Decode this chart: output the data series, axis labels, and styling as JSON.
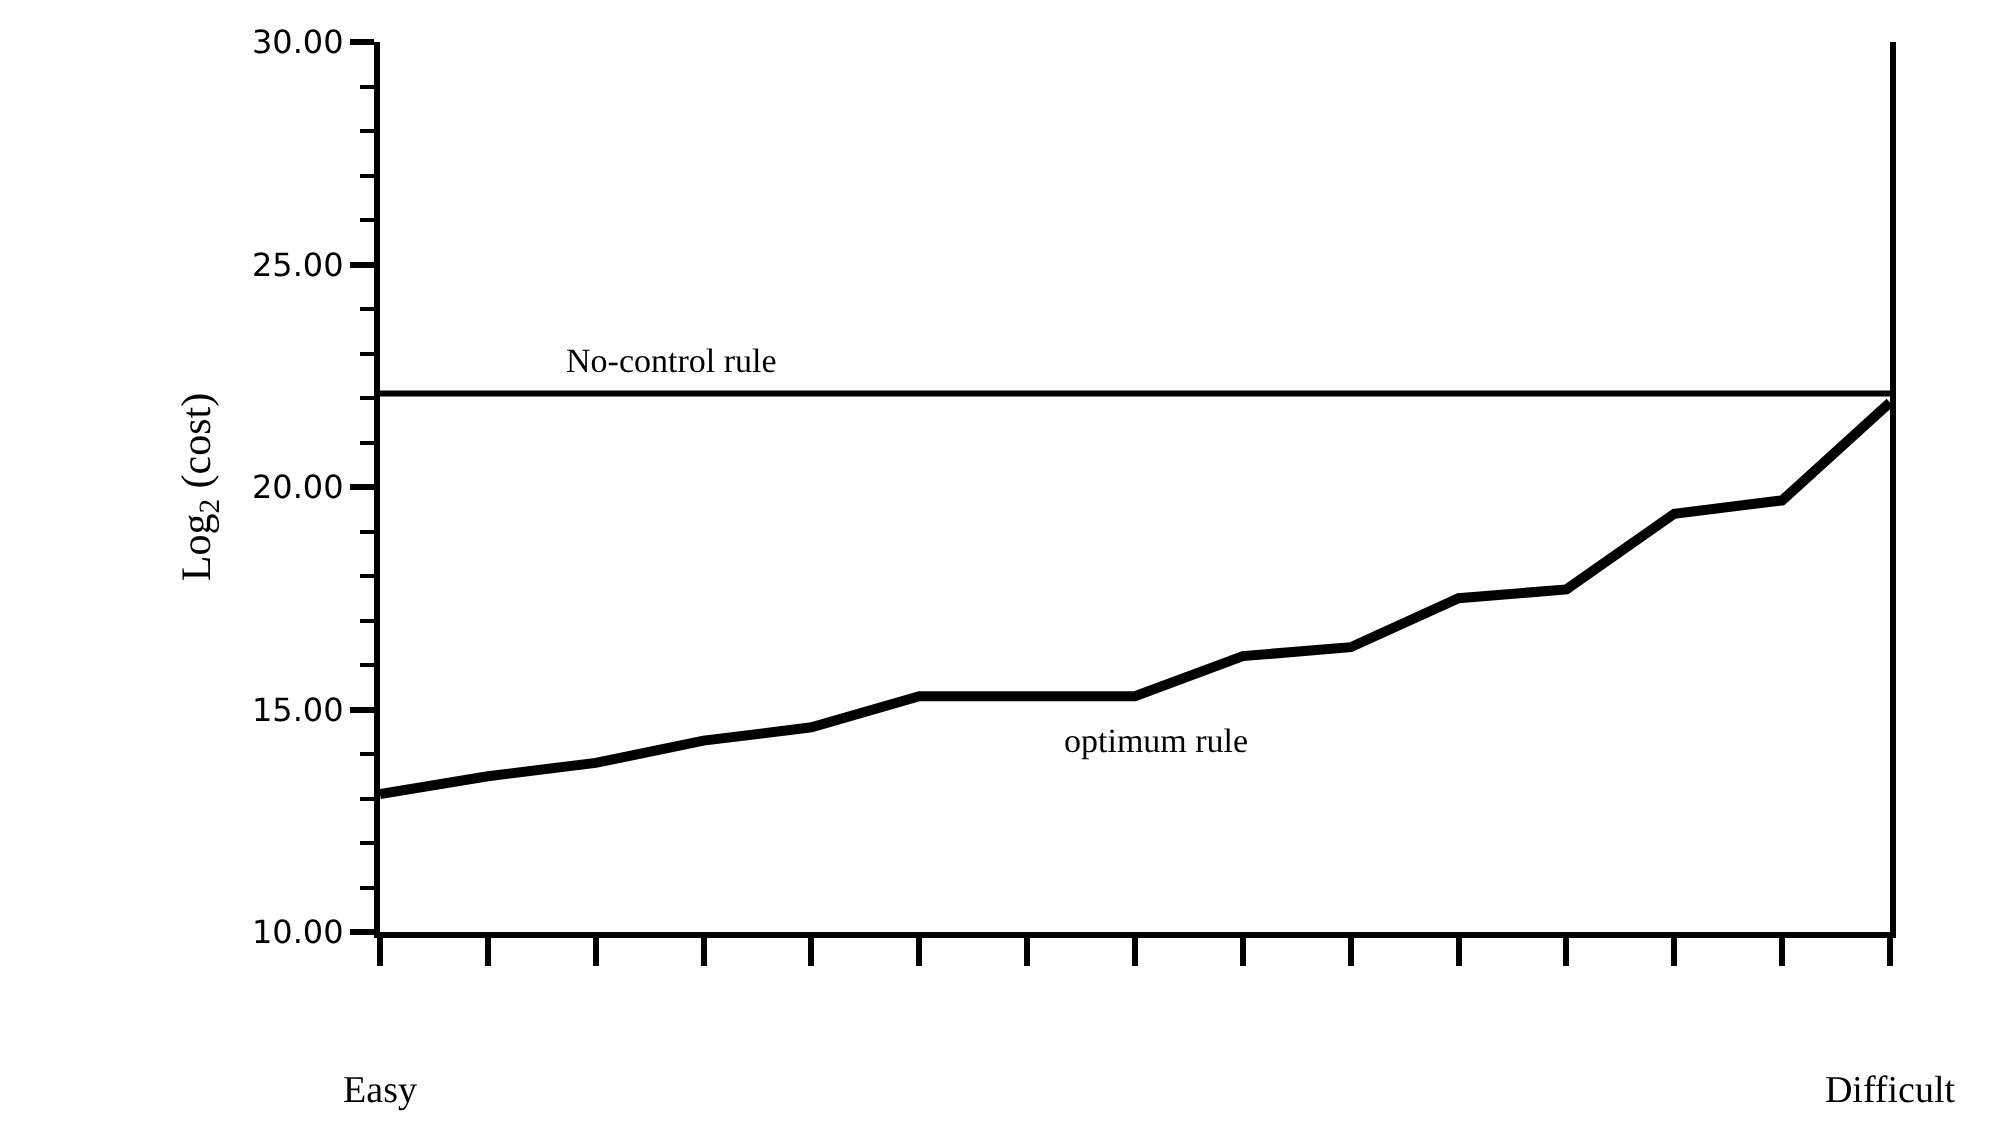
{
  "chart_data": {
    "type": "line",
    "ylabel": "Log$_{2}$ (cost)",
    "categories": [
      "Easy",
      null,
      null,
      null,
      null,
      null,
      null,
      null,
      null,
      null,
      null,
      null,
      null,
      null,
      "Difficult"
    ],
    "series": [
      {
        "name": "optimum rule",
        "color": "#000000",
        "values": [
          13.1,
          13.5,
          13.8,
          14.3,
          14.6,
          15.3,
          15.3,
          15.3,
          16.2,
          16.4,
          17.5,
          17.7,
          19.4,
          19.7,
          21.9
        ]
      }
    ],
    "ylim": [
      10,
      30
    ],
    "yticks": [
      {
        "value": 10,
        "label": "10.00"
      },
      {
        "value": 15,
        "label": "15.00"
      },
      {
        "value": 20,
        "label": "20.00"
      },
      {
        "value": 25,
        "label": "25.00"
      },
      {
        "value": 30,
        "label": "30.00"
      }
    ],
    "ref_lines": [
      {
        "axis": "y",
        "value": 22.1,
        "label": "No-control rule",
        "color": "#000000"
      }
    ],
    "legend": false,
    "marker": "none",
    "line_style": "solid"
  }
}
